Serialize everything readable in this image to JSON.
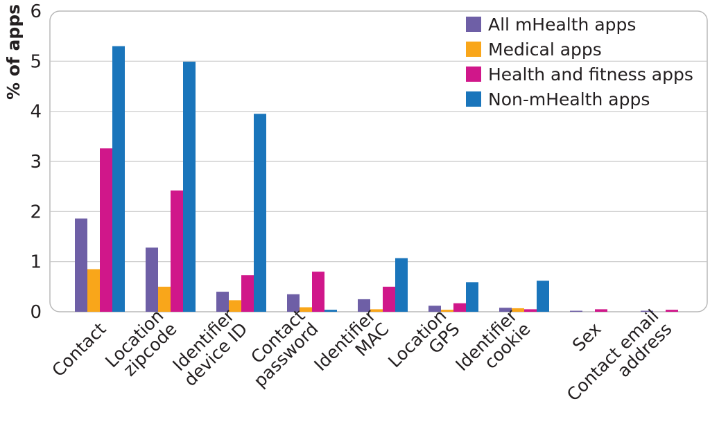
{
  "chart_data": {
    "type": "bar",
    "ylabel": "% of apps",
    "xlabel": "",
    "ylim": [
      0,
      6
    ],
    "yticks": [
      "0",
      "1",
      "2",
      "3",
      "4",
      "5",
      "6"
    ],
    "grid": "horizontal",
    "legend_position": "top-right",
    "categories": [
      [
        "Contact"
      ],
      [
        "Location",
        "zipcode"
      ],
      [
        "Identifier",
        "device ID"
      ],
      [
        "Contact",
        "password"
      ],
      [
        "Identifier",
        "MAC"
      ],
      [
        "Location",
        "GPS"
      ],
      [
        "Identifier",
        "cookie"
      ],
      [
        "Sex"
      ],
      [
        "Contact email",
        "address"
      ]
    ],
    "series": [
      {
        "name": "All mHealth apps",
        "color": "#6e5fa6",
        "values": [
          1.86,
          1.28,
          0.4,
          0.35,
          0.25,
          0.12,
          0.08,
          0.02,
          0.02
        ]
      },
      {
        "name": "Medical apps",
        "color": "#f9a61a",
        "values": [
          0.85,
          0.5,
          0.23,
          0.09,
          0.05,
          0.04,
          0.07,
          0.0,
          0.0
        ]
      },
      {
        "name": "Health and fitness apps",
        "color": "#d0178a",
        "values": [
          3.26,
          2.42,
          0.73,
          0.8,
          0.5,
          0.17,
          0.05,
          0.05,
          0.04
        ]
      },
      {
        "name": "Non-mHealth apps",
        "color": "#1a75bb",
        "values": [
          5.3,
          4.99,
          3.95,
          0.04,
          1.07,
          0.59,
          0.62,
          0.0,
          0.0
        ]
      }
    ]
  }
}
